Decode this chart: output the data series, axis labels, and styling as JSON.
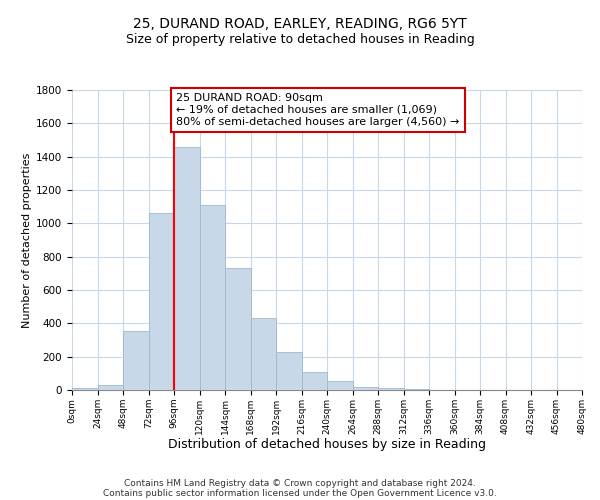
{
  "title": "25, DURAND ROAD, EARLEY, READING, RG6 5YT",
  "subtitle": "Size of property relative to detached houses in Reading",
  "xlabel": "Distribution of detached houses by size in Reading",
  "ylabel": "Number of detached properties",
  "bin_edges": [
    0,
    24,
    48,
    72,
    96,
    120,
    144,
    168,
    192,
    216,
    240,
    264,
    288,
    312,
    336,
    360,
    384,
    408,
    432,
    456,
    480
  ],
  "bin_counts": [
    15,
    30,
    355,
    1065,
    1460,
    1110,
    735,
    435,
    230,
    110,
    55,
    20,
    10,
    5,
    2,
    1,
    0,
    0,
    0,
    0
  ],
  "bar_color": "#c8d8e8",
  "bar_edgecolor": "#a0b8cc",
  "redline_x": 96,
  "annotation_text": "25 DURAND ROAD: 90sqm\n← 19% of detached houses are smaller (1,069)\n80% of semi-detached houses are larger (4,560) →",
  "annotation_box_edgecolor": "#cc0000",
  "annotation_fontsize": 8,
  "ylim": [
    0,
    1800
  ],
  "yticks": [
    0,
    200,
    400,
    600,
    800,
    1000,
    1200,
    1400,
    1600,
    1800
  ],
  "xtick_labels": [
    "0sqm",
    "24sqm",
    "48sqm",
    "72sqm",
    "96sqm",
    "120sqm",
    "144sqm",
    "168sqm",
    "192sqm",
    "216sqm",
    "240sqm",
    "264sqm",
    "288sqm",
    "312sqm",
    "336sqm",
    "360sqm",
    "384sqm",
    "408sqm",
    "432sqm",
    "456sqm",
    "480sqm"
  ],
  "footer_line1": "Contains HM Land Registry data © Crown copyright and database right 2024.",
  "footer_line2": "Contains public sector information licensed under the Open Government Licence v3.0.",
  "background_color": "#ffffff",
  "grid_color": "#c8d8e8",
  "title_fontsize": 10,
  "subtitle_fontsize": 9,
  "xlabel_fontsize": 9,
  "ylabel_fontsize": 8,
  "footer_fontsize": 6.5
}
